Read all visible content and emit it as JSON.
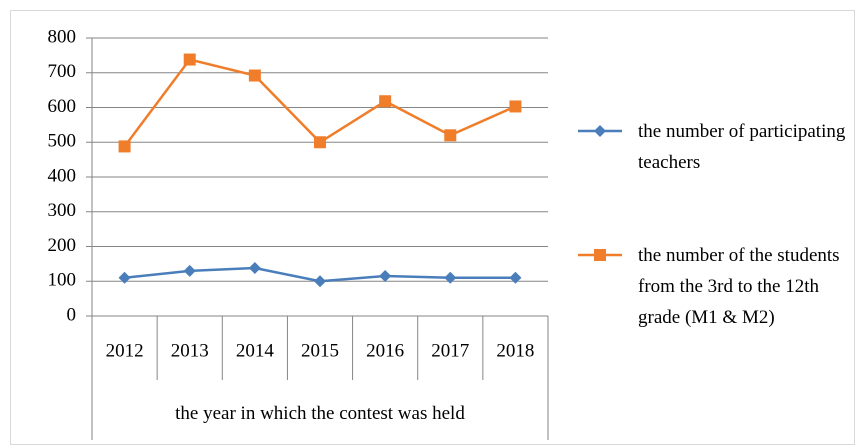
{
  "chart_data": {
    "type": "line",
    "x_label": "the year in which the contest was held",
    "categories": [
      "2012",
      "2013",
      "2014",
      "2015",
      "2016",
      "2017",
      "2018"
    ],
    "series": [
      {
        "name": "the number of participating teachers",
        "color": "#4a7ebb",
        "marker": "diamond",
        "values": [
          110,
          130,
          138,
          100,
          115,
          110,
          110
        ]
      },
      {
        "name": "the number of the students from the 3rd to the 12th grade (M1 & M2)",
        "color": "#f07d2a",
        "marker": "square",
        "values": [
          488,
          738,
          692,
          500,
          618,
          520,
          603
        ]
      }
    ],
    "ylim": [
      0,
      800
    ],
    "yticks": [
      0,
      100,
      200,
      300,
      400,
      500,
      600,
      700,
      800
    ],
    "grid": true,
    "legend": "right"
  }
}
